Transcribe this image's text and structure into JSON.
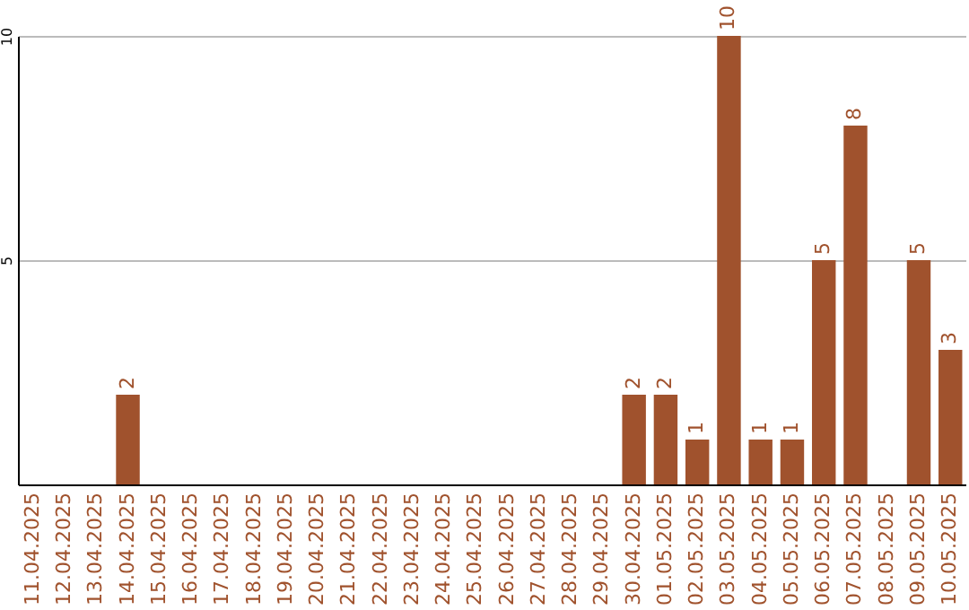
{
  "chart_data": {
    "type": "bar",
    "categories": [
      "11.04.2025",
      "12.04.2025",
      "13.04.2025",
      "14.04.2025",
      "15.04.2025",
      "16.04.2025",
      "17.04.2025",
      "18.04.2025",
      "19.04.2025",
      "20.04.2025",
      "21.04.2025",
      "22.04.2025",
      "23.04.2025",
      "24.04.2025",
      "25.04.2025",
      "26.04.2025",
      "27.04.2025",
      "28.04.2025",
      "29.04.2025",
      "30.04.2025",
      "01.05.2025",
      "02.05.2025",
      "03.05.2025",
      "04.05.2025",
      "05.05.2025",
      "06.05.2025",
      "07.05.2025",
      "08.05.2025",
      "09.05.2025",
      "10.05.2025"
    ],
    "values": [
      0,
      0,
      0,
      2,
      0,
      0,
      0,
      0,
      0,
      0,
      0,
      0,
      0,
      0,
      0,
      0,
      0,
      0,
      0,
      2,
      2,
      1,
      10,
      1,
      1,
      5,
      8,
      0,
      5,
      3
    ],
    "value_labels": [
      null,
      null,
      null,
      "2",
      null,
      null,
      null,
      null,
      null,
      null,
      null,
      null,
      null,
      null,
      null,
      null,
      null,
      null,
      null,
      "2",
      "2",
      "1",
      "10",
      "1",
      "1",
      "5",
      "8",
      null,
      "5",
      "3"
    ],
    "color": "#a0522d",
    "ylim": [
      0,
      10
    ],
    "yticks": [
      5,
      10
    ],
    "grid": "y"
  }
}
